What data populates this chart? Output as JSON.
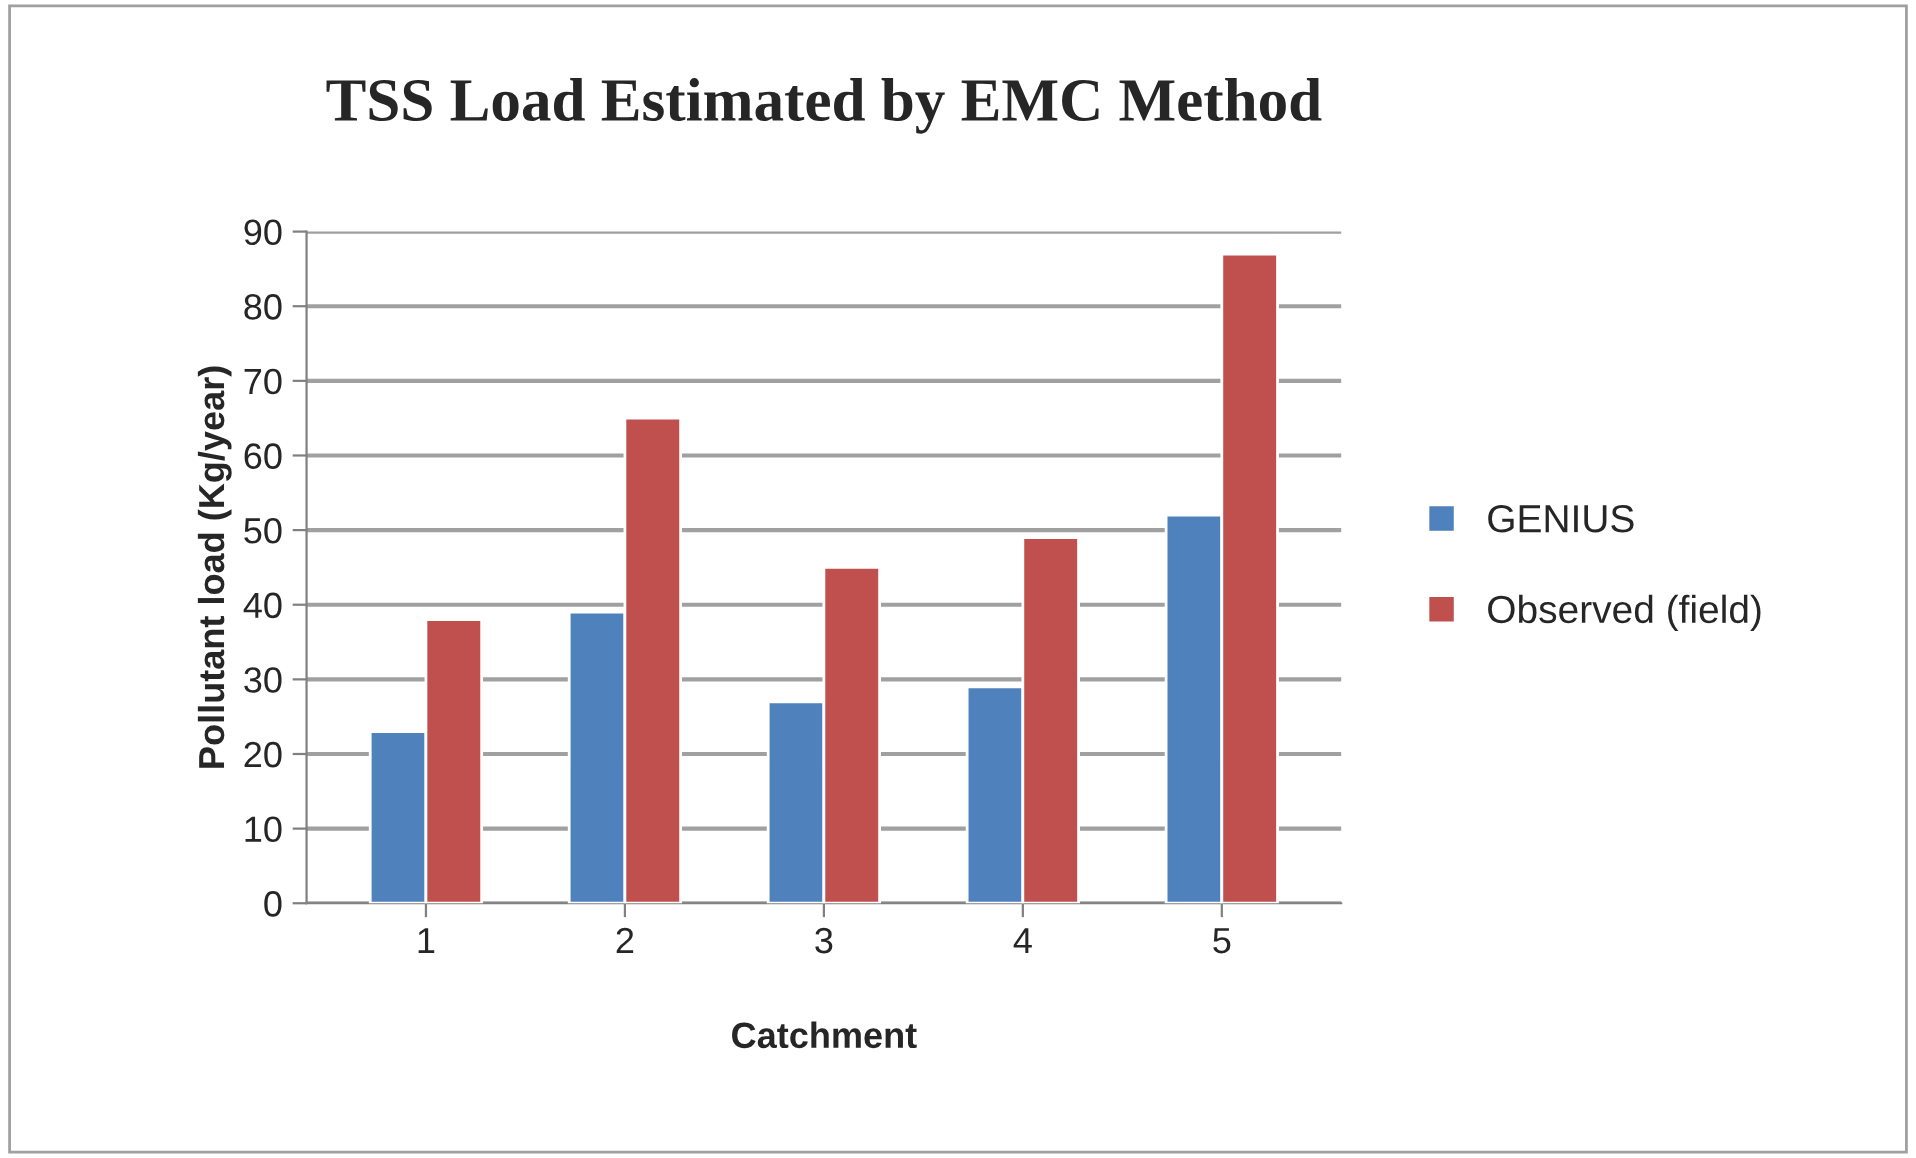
{
  "chart_data": {
    "type": "bar",
    "title": "TSS Load Estimated by EMC Method",
    "xlabel": "Catchment",
    "ylabel": "Pollutant load (Kg/year)",
    "categories": [
      "1",
      "2",
      "3",
      "4",
      "5"
    ],
    "series": [
      {
        "name": "GENIUS",
        "color": "#4f81bd",
        "values": [
          23,
          39,
          27,
          29,
          52
        ]
      },
      {
        "name": "Observed (field)",
        "color": "#c0504d",
        "values": [
          38,
          65,
          45,
          49,
          87
        ]
      }
    ],
    "ylim": [
      0,
      90
    ],
    "yticks": [
      0,
      10,
      20,
      30,
      40,
      50,
      60,
      70,
      80,
      90
    ],
    "grid": "y",
    "legend": "right"
  }
}
